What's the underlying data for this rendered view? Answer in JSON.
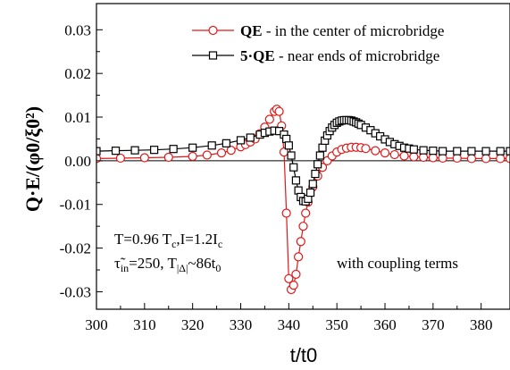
{
  "chart_data": {
    "type": "line",
    "title": "",
    "xlabel": "t/t0",
    "ylabel": "Q·E/(φ0/ξ0²)",
    "xlim": [
      300,
      386
    ],
    "ylim": [
      -0.034,
      0.036
    ],
    "x_ticks": [
      "300",
      "310",
      "320",
      "330",
      "340",
      "350",
      "360",
      "370",
      "380"
    ],
    "y_ticks": [
      "0.03",
      "0.02",
      "0.01",
      "0.00",
      "-0.01",
      "-0.02",
      "-0.03"
    ],
    "legend_position": "top-right",
    "series": [
      {
        "name": "QE - in the center of microbridge",
        "legend_bold": "QE",
        "legend_rest": " - in the center of microbridge",
        "color": "#e01818",
        "marker": "circle",
        "x": [
          300,
          305,
          310,
          315,
          320,
          323,
          326,
          328,
          330,
          331,
          332,
          333,
          334,
          335,
          336,
          337,
          337.5,
          338,
          338.5,
          339,
          339.5,
          340,
          340.5,
          341,
          341.5,
          342,
          342.5,
          343,
          343.5,
          344,
          345,
          346,
          347,
          348,
          349,
          350,
          351,
          352,
          353,
          354,
          355,
          356,
          358,
          360,
          362,
          364,
          366,
          368,
          370,
          372,
          375,
          378,
          381,
          384,
          386
        ],
        "y": [
          0.0005,
          0.0006,
          0.0007,
          0.0008,
          0.001,
          0.0013,
          0.0018,
          0.0024,
          0.0032,
          0.0037,
          0.0043,
          0.005,
          0.0062,
          0.0077,
          0.0095,
          0.0113,
          0.0118,
          0.0113,
          0.008,
          0.002,
          -0.012,
          -0.027,
          -0.0295,
          -0.0285,
          -0.026,
          -0.022,
          -0.0185,
          -0.015,
          -0.012,
          -0.0095,
          -0.006,
          -0.0035,
          -0.0015,
          0.0,
          0.0011,
          0.002,
          0.0026,
          0.0029,
          0.0031,
          0.0031,
          0.003,
          0.0028,
          0.0023,
          0.0018,
          0.0014,
          0.0011,
          0.0009,
          0.0008,
          0.0007,
          0.0006,
          0.0006,
          0.0005,
          0.0005,
          0.0005,
          0.0005
        ]
      },
      {
        "name": "5·QE - near ends of microbridge",
        "legend_bold": "5·QE",
        "legend_rest": " - near ends of microbridge",
        "color": "#000000",
        "marker": "square",
        "x": [
          300,
          304,
          308,
          312,
          316,
          320,
          324,
          327,
          330,
          332,
          334,
          335,
          336,
          337,
          338,
          339,
          339.5,
          340,
          340.5,
          341,
          341.5,
          342,
          342.5,
          343,
          343.5,
          344,
          344.5,
          345,
          345.5,
          346,
          346.5,
          347,
          347.5,
          348,
          348.5,
          349,
          349.5,
          350,
          350.5,
          351,
          351.5,
          352,
          352.5,
          353,
          353.5,
          354,
          354.5,
          355,
          356,
          357,
          358,
          359,
          360,
          361,
          362,
          363,
          364,
          365,
          366,
          368,
          370,
          372,
          375,
          378,
          381,
          384,
          386
        ],
        "y": [
          0.0022,
          0.0023,
          0.0024,
          0.0025,
          0.0027,
          0.003,
          0.0035,
          0.004,
          0.0047,
          0.0053,
          0.006,
          0.0064,
          0.0067,
          0.0069,
          0.0068,
          0.006,
          0.005,
          0.0035,
          0.0012,
          -0.0015,
          -0.0045,
          -0.0068,
          -0.0083,
          -0.0092,
          -0.0093,
          -0.0087,
          -0.0073,
          -0.0053,
          -0.003,
          -0.0008,
          0.0012,
          0.003,
          0.0046,
          0.0058,
          0.0068,
          0.0076,
          0.0082,
          0.0087,
          0.009,
          0.0092,
          0.0093,
          0.0093,
          0.0093,
          0.0092,
          0.009,
          0.0088,
          0.0085,
          0.0082,
          0.0076,
          0.007,
          0.0063,
          0.0056,
          0.0049,
          0.0043,
          0.0038,
          0.0034,
          0.003,
          0.0028,
          0.0026,
          0.0024,
          0.0023,
          0.0022,
          0.0022,
          0.0022,
          0.0022,
          0.0022,
          0.0022
        ]
      }
    ],
    "annotations": {
      "line1": "T=0.96 T",
      "line1_sub": "c",
      "line1_b": ",I=1.2I",
      "line1_b_sub": "c",
      "line2_tau": "τ̃",
      "line2_tau_sub": "in",
      "line2_a": "=250, T",
      "line2_a_sub": "|Δ|",
      "line2_b": "~86t",
      "line2_b_sub": "0",
      "coupling": "with coupling terms"
    }
  }
}
